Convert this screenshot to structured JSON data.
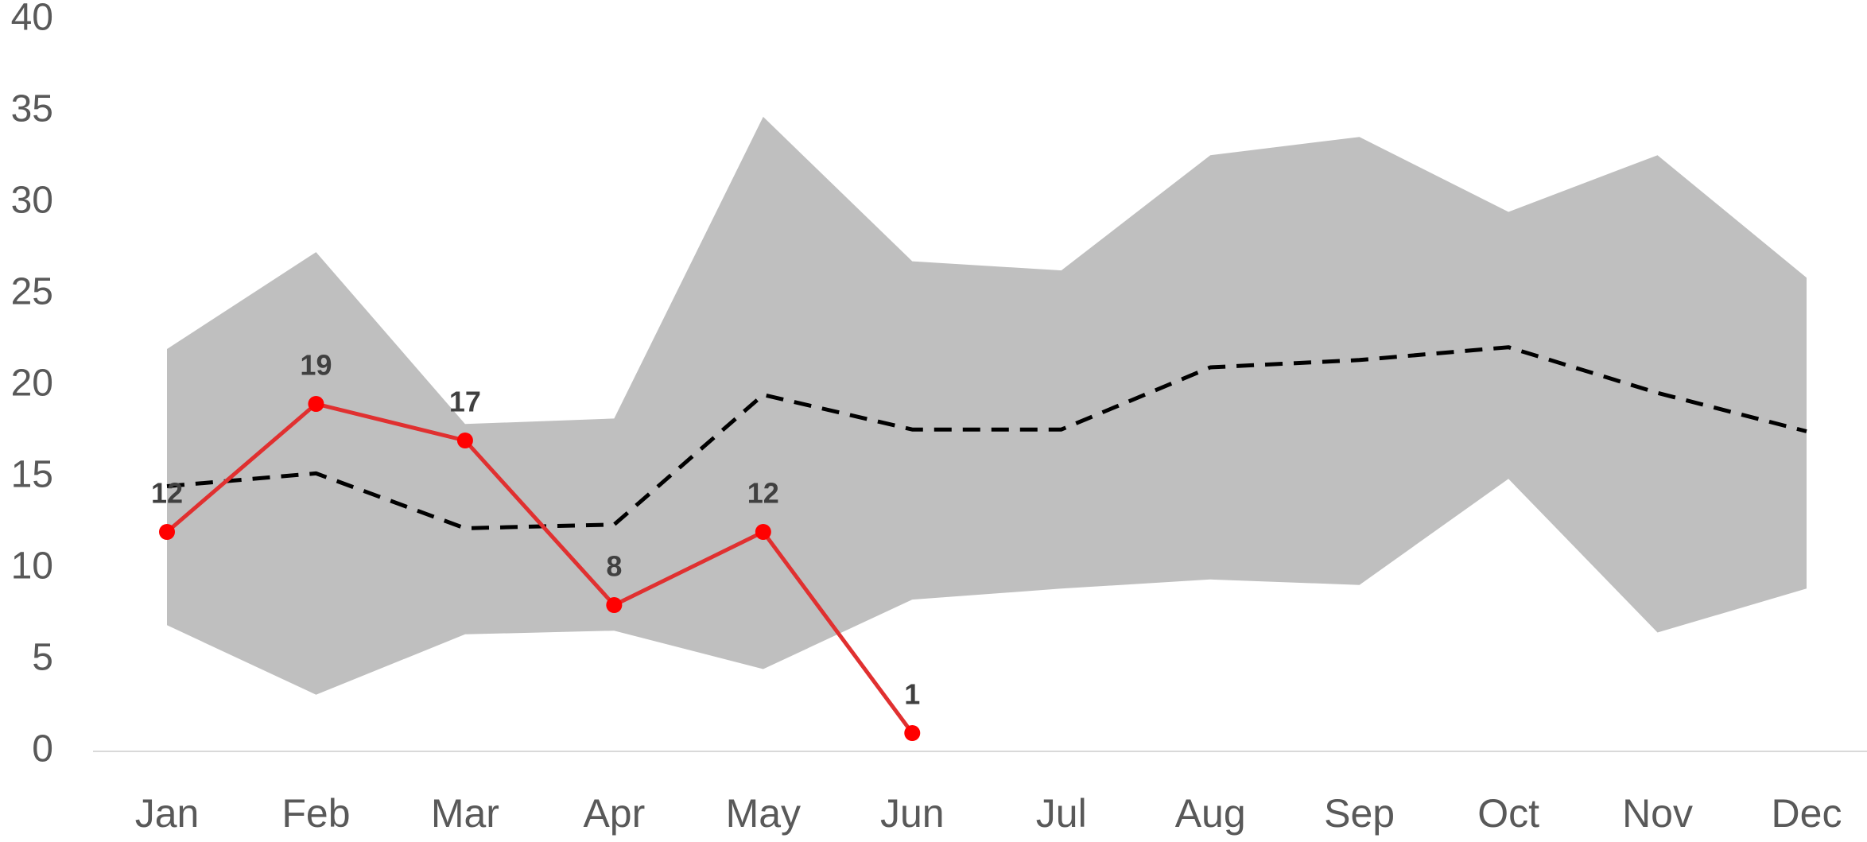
{
  "chart_data": {
    "type": "line",
    "categories": [
      "Jan",
      "Feb",
      "Mar",
      "Apr",
      "May",
      "Jun",
      "Jul",
      "Aug",
      "Sep",
      "Oct",
      "Nov",
      "Dec"
    ],
    "band": {
      "color": "#bfbfbf",
      "upper": [
        22,
        27.3,
        17.9,
        18.2,
        34.7,
        26.8,
        26.3,
        32.6,
        33.6,
        29.5,
        32.6,
        25.9
      ],
      "lower": [
        6.9,
        3.1,
        6.4,
        6.6,
        4.5,
        8.3,
        8.9,
        9.4,
        9.1,
        14.9,
        6.5,
        8.9
      ]
    },
    "series": [
      {
        "color": "#000000",
        "dashed": true,
        "markers": false,
        "data_labels": false,
        "values": [
          14.5,
          15.2,
          12.2,
          12.4,
          19.5,
          17.6,
          17.6,
          21,
          21.4,
          22.1,
          19.6,
          17.5
        ]
      },
      {
        "color": "#e03030",
        "dashed": false,
        "markers": true,
        "marker_color": "#ff0000",
        "data_labels": true,
        "values": [
          12,
          19,
          17,
          8,
          12,
          1,
          null,
          null,
          null,
          null,
          null,
          null
        ]
      }
    ],
    "ylim": [
      0,
      40
    ],
    "yticks": [
      0,
      5,
      10,
      15,
      20,
      25,
      30,
      35,
      40
    ],
    "grid": false
  }
}
